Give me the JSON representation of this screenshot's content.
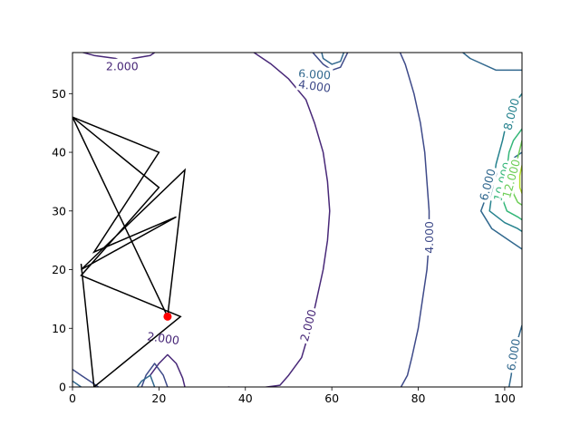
{
  "chart_data": {
    "type": "contour",
    "title": "",
    "xlabel": "",
    "ylabel": "",
    "xlim": [
      0,
      104
    ],
    "ylim": [
      0,
      57
    ],
    "x_ticks": [
      "0",
      "20",
      "40",
      "60",
      "80",
      "100"
    ],
    "y_ticks": [
      "0",
      "10",
      "20",
      "30",
      "40",
      "50"
    ],
    "contour_levels": [
      {
        "name": "2.000",
        "color": "#482878"
      },
      {
        "name": "4.000",
        "color": "#3e4a89"
      },
      {
        "name": "6.000",
        "color": "#31688e"
      },
      {
        "name": "8.000",
        "color": "#26828e"
      },
      {
        "name": "10.000",
        "color": "#35b779"
      },
      {
        "name": "12.000",
        "color": "#6ece58"
      },
      {
        "name": "14.000",
        "color": "#b5de2b"
      }
    ],
    "contour_labels": [
      {
        "text": "2.000",
        "x": 11.5,
        "y": 54.7,
        "rotation": 0,
        "color": "#482878"
      },
      {
        "text": "6.000",
        "x": 56,
        "y": 53.3,
        "rotation": 3,
        "color": "#31688e"
      },
      {
        "text": "4.000",
        "x": 56,
        "y": 51.3,
        "rotation": 8,
        "color": "#3e4a89"
      },
      {
        "text": "8.000",
        "x": 101.5,
        "y": 46.5,
        "rotation": -75,
        "color": "#26828e"
      },
      {
        "text": "6.000",
        "x": 96,
        "y": 34.5,
        "rotation": -75,
        "color": "#31688e"
      },
      {
        "text": "10.000",
        "x": 99.5,
        "y": 35,
        "rotation": -75,
        "color": "#35b779"
      },
      {
        "text": "12.000",
        "x": 101.5,
        "y": 35.5,
        "rotation": -75,
        "color": "#6ece58"
      },
      {
        "text": "4.000",
        "x": 82.5,
        "y": 25.5,
        "rotation": -90,
        "color": "#3e4a89"
      },
      {
        "text": "2.000",
        "x": 54.5,
        "y": 10.5,
        "rotation": -75,
        "color": "#482878"
      },
      {
        "text": "2.000",
        "x": 21,
        "y": 8.3,
        "rotation": 8,
        "color": "#482878"
      },
      {
        "text": "6.000",
        "x": 102,
        "y": 5.5,
        "rotation": -80,
        "color": "#31688e"
      }
    ],
    "contour_lines": [
      {
        "level": "2.000",
        "points": [
          [
            0,
            57.5
          ],
          [
            5,
            56.5
          ],
          [
            10,
            56
          ],
          [
            12,
            55.3
          ],
          [
            14,
            56
          ],
          [
            18,
            56.5
          ],
          [
            20,
            57.5
          ]
        ]
      },
      {
        "level": "2.000",
        "points": [
          [
            41,
            57.5
          ],
          [
            46,
            55
          ],
          [
            50,
            52.5
          ],
          [
            54,
            49
          ],
          [
            56,
            45
          ],
          [
            58,
            40
          ],
          [
            59,
            35
          ],
          [
            59.5,
            30
          ],
          [
            59,
            25
          ],
          [
            58,
            20
          ],
          [
            56.5,
            15
          ],
          [
            55,
            10
          ],
          [
            53,
            5
          ],
          [
            50,
            2
          ],
          [
            48,
            0.3
          ],
          [
            44,
            -0.1
          ],
          [
            40,
            -0.3
          ],
          [
            36,
            0
          ]
        ]
      },
      {
        "level": "2.000",
        "points": [
          [
            26,
            0
          ],
          [
            25.5,
            1.5
          ],
          [
            24,
            4
          ],
          [
            22,
            5.5
          ],
          [
            20,
            4
          ],
          [
            18,
            2
          ]
        ]
      },
      {
        "level": "4.000",
        "points": [
          [
            75.5,
            57.5
          ],
          [
            77,
            55
          ],
          [
            79,
            50
          ],
          [
            80.5,
            45
          ],
          [
            81.5,
            40
          ],
          [
            82,
            35
          ],
          [
            82.5,
            30
          ],
          [
            82.5,
            25
          ],
          [
            82,
            20
          ],
          [
            81,
            15
          ],
          [
            80,
            10
          ],
          [
            78.5,
            5
          ],
          [
            77.5,
            2
          ],
          [
            76,
            0
          ]
        ]
      },
      {
        "level": "4.000",
        "points": [
          [
            55,
            57.5
          ],
          [
            58,
            55
          ],
          [
            60,
            54
          ],
          [
            62,
            54.5
          ],
          [
            64,
            57.5
          ]
        ]
      },
      {
        "level": "4.000",
        "points": [
          [
            0,
            3
          ],
          [
            2,
            2
          ],
          [
            4,
            1
          ],
          [
            6,
            0
          ]
        ]
      },
      {
        "level": "4.000",
        "points": [
          [
            22,
            0
          ],
          [
            21,
            2
          ],
          [
            19,
            4
          ],
          [
            17,
            2
          ],
          [
            16,
            0
          ]
        ]
      },
      {
        "level": "6.000",
        "points": [
          [
            57.5,
            57.5
          ],
          [
            58,
            56
          ],
          [
            60,
            55
          ],
          [
            62,
            55.5
          ],
          [
            63,
            57.5
          ]
        ]
      },
      {
        "level": "6.000",
        "points": [
          [
            104,
            54
          ],
          [
            98,
            54
          ],
          [
            92,
            56
          ],
          [
            89.5,
            57.5
          ]
        ]
      },
      {
        "level": "6.000",
        "points": [
          [
            0,
            1
          ],
          [
            1,
            0.5
          ],
          [
            2,
            0
          ]
        ]
      },
      {
        "level": "6.000",
        "points": [
          [
            19,
            0
          ],
          [
            18,
            2
          ],
          [
            16,
            1
          ],
          [
            15,
            0
          ]
        ]
      },
      {
        "level": "6.000",
        "points": [
          [
            104,
            10.5
          ],
          [
            103,
            8
          ],
          [
            102,
            5
          ],
          [
            101.5,
            2
          ],
          [
            101,
            0
          ]
        ]
      },
      {
        "level": "6.000",
        "points": [
          [
            104,
            40
          ],
          [
            100,
            38
          ],
          [
            97,
            35
          ],
          [
            94.5,
            30
          ],
          [
            97,
            27
          ],
          [
            101,
            25
          ],
          [
            104,
            23.5
          ]
        ]
      },
      {
        "level": "8.000",
        "points": [
          [
            104,
            50
          ],
          [
            101,
            47
          ],
          [
            99.5,
            42
          ],
          [
            98,
            38
          ],
          [
            96.5,
            30
          ],
          [
            100,
            28
          ],
          [
            103,
            27
          ],
          [
            104,
            26.5
          ]
        ]
      },
      {
        "level": "10.000",
        "points": [
          [
            104,
            44
          ],
          [
            102,
            42
          ],
          [
            101,
            40
          ],
          [
            100.5,
            37
          ],
          [
            99,
            33
          ],
          [
            100.5,
            30
          ],
          [
            103,
            29
          ],
          [
            104,
            28.5
          ]
        ]
      },
      {
        "level": "12.000",
        "points": [
          [
            104,
            42
          ],
          [
            103,
            39
          ],
          [
            102.5,
            36
          ],
          [
            102,
            33
          ],
          [
            103,
            31.5
          ],
          [
            104,
            31
          ]
        ]
      },
      {
        "level": "14.000",
        "points": [
          [
            104,
            38
          ],
          [
            103.5,
            36
          ],
          [
            103.5,
            34
          ],
          [
            104,
            33
          ]
        ]
      }
    ],
    "path": {
      "name": "",
      "color": "#000000",
      "points": [
        [
          0,
          46
        ],
        [
          20,
          40
        ],
        [
          5,
          23
        ],
        [
          24,
          29
        ],
        [
          2,
          20
        ],
        [
          26,
          37
        ],
        [
          22,
          12
        ],
        [
          0,
          46
        ],
        [
          20,
          34
        ],
        [
          2,
          19
        ],
        [
          25,
          12
        ],
        [
          5,
          0
        ],
        [
          2,
          21
        ]
      ]
    },
    "marker": {
      "x": 22,
      "y": 12,
      "color": "#ff0000"
    }
  }
}
